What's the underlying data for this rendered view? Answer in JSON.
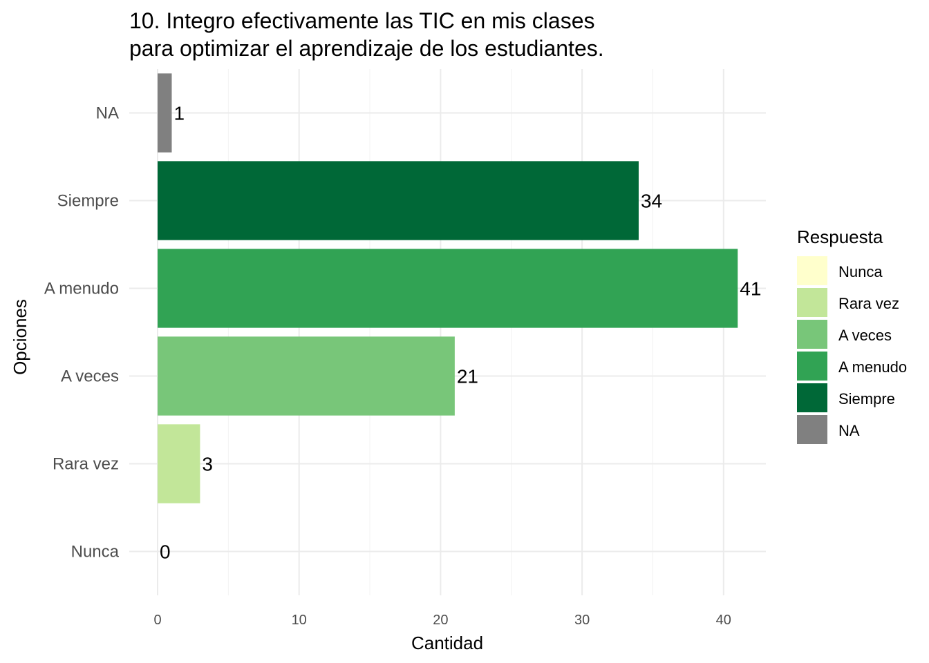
{
  "chart_data": {
    "type": "bar",
    "orientation": "horizontal",
    "title_lines": [
      "10. Integro efectivamente las TIC en mis clases",
      "para optimizar el aprendizaje de los estudiantes."
    ],
    "xlabel": "Cantidad",
    "ylabel": "Opciones",
    "categories": [
      "Nunca",
      "Rara vez",
      "A veces",
      "A menudo",
      "Siempre",
      "NA"
    ],
    "values": [
      0,
      3,
      21,
      41,
      34,
      1
    ],
    "data_labels": [
      "0",
      "3",
      "21",
      "41",
      "34",
      "1"
    ],
    "colors": [
      "#ffffcc",
      "#c2e699",
      "#78c679",
      "#31a354",
      "#006837",
      "#808080"
    ],
    "xlim": [
      0,
      43
    ],
    "x_ticks": [
      0,
      10,
      20,
      30,
      40
    ],
    "x_tick_labels": [
      "0",
      "10",
      "20",
      "30",
      "40"
    ],
    "grid": true,
    "legend": {
      "title": "Respuesta",
      "placement": "right",
      "entries": [
        "Nunca",
        "Rara vez",
        "A veces",
        "A menudo",
        "Siempre",
        "NA"
      ]
    }
  }
}
